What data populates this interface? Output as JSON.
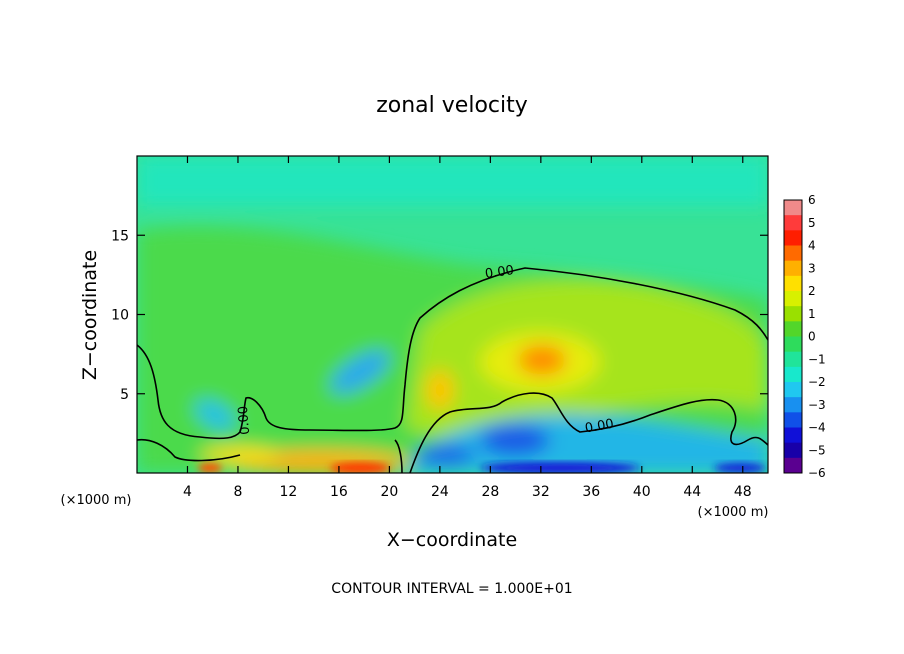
{
  "chart_data": {
    "type": "heatmap",
    "title": "zonal velocity",
    "xlabel": "X−coordinate",
    "ylabel": "Z−coordinate",
    "x_unit_left": "(×1000 m)",
    "x_unit_right": "(×1000 m)",
    "xlim": [
      0,
      50
    ],
    "ylim": [
      0,
      20
    ],
    "x_ticks": [
      "4",
      "8",
      "12",
      "16",
      "20",
      "24",
      "28",
      "32",
      "36",
      "40",
      "44",
      "48"
    ],
    "x_tick_values": [
      4,
      8,
      12,
      16,
      20,
      24,
      28,
      32,
      36,
      40,
      44,
      48
    ],
    "y_ticks": [
      "5",
      "10",
      "15"
    ],
    "y_tick_values": [
      5,
      10,
      15
    ],
    "colorbar": {
      "labels": [
        "6",
        "5",
        "4",
        "3",
        "2",
        "1",
        "0",
        "−1",
        "−2",
        "−3",
        "−4",
        "−5",
        "−6"
      ],
      "values": [
        6,
        5,
        4,
        3,
        2,
        1,
        0,
        -1,
        -2,
        -3,
        -4,
        -5,
        -6
      ],
      "colors_top_to_bottom": [
        "#f08a8a",
        "#ff3b3b",
        "#ff1e00",
        "#ff6a00",
        "#ffb000",
        "#ffe000",
        "#d8f000",
        "#9ae000",
        "#52d62a",
        "#2edc5c",
        "#20e49a",
        "#18e8cc",
        "#20c8f0",
        "#1890f0",
        "#1050e8",
        "#1010d8",
        "#1800a8",
        "#5a0090"
      ]
    },
    "contour_label": "0.00",
    "grid": false,
    "legend": "colorbar at right",
    "footer": "CONTOUR INTERVAL = 1.000E+01"
  }
}
